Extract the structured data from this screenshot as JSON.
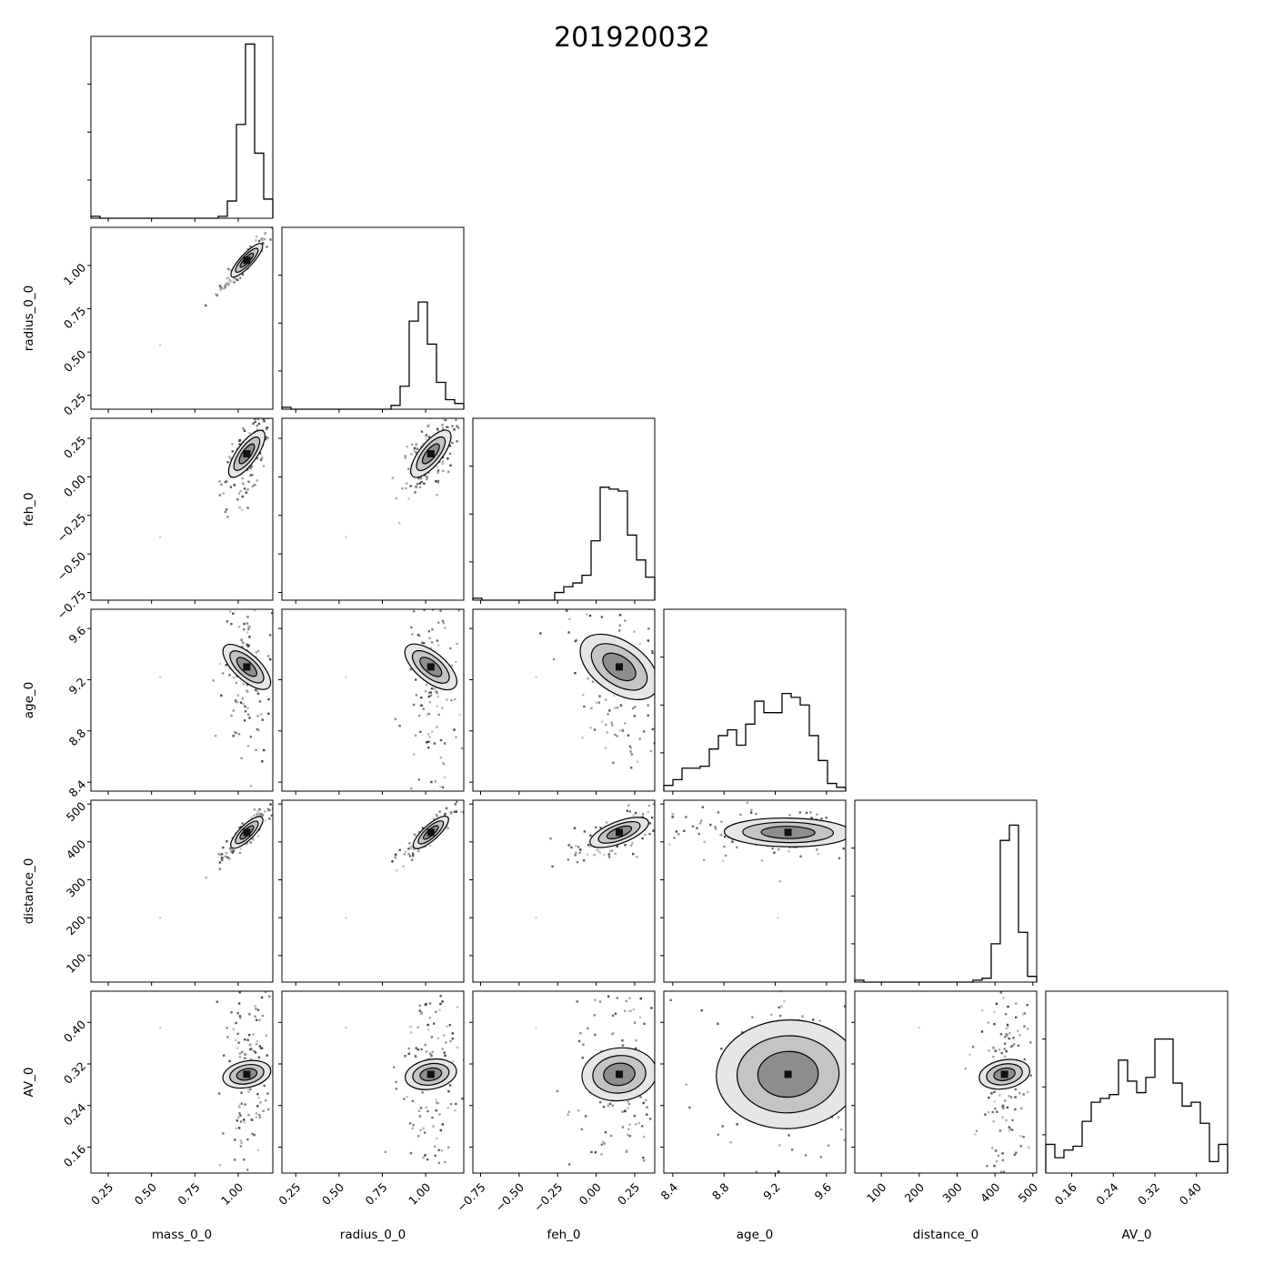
{
  "chart_data": {
    "type": "corner",
    "title": "201920032",
    "parameters": [
      {
        "name": "mass_0_0",
        "range": [
          0.15,
          1.2
        ],
        "ticks": [
          0.25,
          0.5,
          0.75,
          1.0
        ],
        "tick_labels": [
          "0.25",
          "0.50",
          "0.75",
          "1.00"
        ]
      },
      {
        "name": "radius_0_0",
        "range": [
          0.17,
          1.22
        ],
        "ticks": [
          0.25,
          0.5,
          0.75,
          1.0
        ],
        "tick_labels": [
          "0.25",
          "0.50",
          "0.75",
          "1.00"
        ]
      },
      {
        "name": "feh_0",
        "range": [
          -0.8,
          0.38
        ],
        "ticks": [
          -0.75,
          -0.5,
          -0.25,
          0.0,
          0.25
        ],
        "tick_labels": [
          "−0.75",
          "−0.50",
          "−0.25",
          "0.00",
          "0.25"
        ]
      },
      {
        "name": "age_0",
        "range": [
          8.33,
          9.75
        ],
        "ticks": [
          8.4,
          8.8,
          9.2,
          9.6
        ],
        "tick_labels": [
          "8.4",
          "8.8",
          "9.2",
          "9.6"
        ]
      },
      {
        "name": "distance_0",
        "range": [
          30,
          510
        ],
        "ticks": [
          100,
          200,
          300,
          400,
          500
        ],
        "tick_labels": [
          "100",
          "200",
          "300",
          "400",
          "500"
        ]
      },
      {
        "name": "AV_0",
        "range": [
          0.11,
          0.46
        ],
        "ticks": [
          0.16,
          0.24,
          0.32,
          0.4
        ],
        "tick_labels": [
          "0.16",
          "0.24",
          "0.32",
          "0.40"
        ]
      }
    ],
    "histograms": [
      [
        0.01,
        0,
        0,
        0,
        0,
        0,
        0,
        0,
        0,
        0,
        0,
        0,
        0,
        0,
        0.01,
        0.09,
        0.49,
        0.91,
        0.34,
        0.1
      ],
      [
        0.01,
        0,
        0,
        0,
        0,
        0,
        0,
        0,
        0,
        0,
        0,
        0,
        0.02,
        0.12,
        0.46,
        0.56,
        0.34,
        0.14,
        0.05,
        0.03
      ],
      [
        0.01,
        0,
        0,
        0,
        0,
        0,
        0,
        0,
        0,
        0.04,
        0.07,
        0.09,
        0.13,
        0.31,
        0.59,
        0.58,
        0.57,
        0.34,
        0.21,
        0.12
      ],
      [
        0.03,
        0.06,
        0.12,
        0.12,
        0.13,
        0.22,
        0.29,
        0.32,
        0.24,
        0.35,
        0.47,
        0.41,
        0.41,
        0.51,
        0.49,
        0.45,
        0.29,
        0.16,
        0.04,
        0.02
      ],
      [
        0.01,
        0,
        0,
        0,
        0,
        0,
        0,
        0,
        0,
        0,
        0,
        0,
        0,
        0.01,
        0.02,
        0.2,
        0.74,
        0.82,
        0.26,
        0.03
      ],
      [
        0.15,
        0.08,
        0.12,
        0.14,
        0.27,
        0.37,
        0.39,
        0.41,
        0.59,
        0.48,
        0.42,
        0.5,
        0.7,
        0.7,
        0.47,
        0.35,
        0.37,
        0.26,
        0.06,
        0.15
      ]
    ],
    "hist_ylim": [
      0,
      0.95
    ],
    "modes": [
      1.05,
      1.03,
      0.15,
      9.3,
      425,
      0.3
    ],
    "spreads": [
      0.04,
      0.045,
      0.09,
      0.25,
      20,
      0.055
    ],
    "correlations": [
      [
        1,
        0.95,
        0.7,
        -0.2,
        0.9,
        0.05
      ],
      [
        0.95,
        1,
        0.7,
        -0.2,
        0.92,
        0.05
      ],
      [
        0.7,
        0.7,
        1,
        -0.3,
        0.7,
        0.05
      ],
      [
        -0.2,
        -0.2,
        -0.3,
        1,
        -0.05,
        0.05
      ],
      [
        0.9,
        0.92,
        0.7,
        -0.05,
        1,
        0.05
      ],
      [
        0.05,
        0.05,
        0.05,
        0.05,
        0.05,
        1
      ]
    ],
    "outlier_point": [
      0.55,
      0.54,
      -0.39,
      9.22,
      200,
      0.39
    ]
  }
}
